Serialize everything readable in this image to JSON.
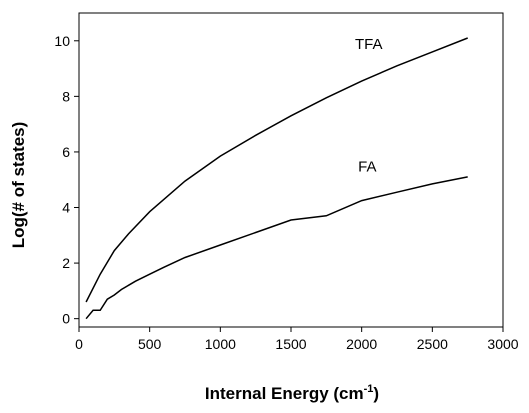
{
  "chart_data": {
    "type": "line",
    "title": "",
    "xlabel": "Internal Energy (cm",
    "xlabel_sup": "-1",
    "xlabel_tail": ")",
    "ylabel": "Log(# of states)",
    "xlim": [
      0,
      3000
    ],
    "ylim": [
      -0.3,
      11
    ],
    "xticks": [
      0,
      500,
      1000,
      1500,
      2000,
      2500,
      3000
    ],
    "yticks": [
      0,
      2,
      4,
      6,
      8,
      10
    ],
    "xtick_labels": [
      "0",
      "500",
      "1000",
      "1500",
      "2000",
      "2500",
      "3000"
    ],
    "ytick_labels": [
      "0",
      "2",
      "4",
      "6",
      "8",
      "10"
    ],
    "grid": false,
    "series": [
      {
        "name": "TFA",
        "label_at": [
          2050,
          9.7
        ],
        "x": [
          50,
          150,
          250,
          350,
          500,
          750,
          1000,
          1250,
          1500,
          1750,
          2000,
          2250,
          2500,
          2750
        ],
        "y": [
          0.6,
          1.6,
          2.45,
          3.05,
          3.85,
          4.95,
          5.85,
          6.6,
          7.3,
          7.95,
          8.55,
          9.1,
          9.6,
          10.1
        ]
      },
      {
        "name": "FA",
        "label_at": [
          2040,
          5.3
        ],
        "x": [
          50,
          100,
          150,
          200,
          250,
          300,
          350,
          400,
          500,
          600,
          750,
          1000,
          1250,
          1500,
          1750,
          2000,
          2250,
          2500,
          2750
        ],
        "y": [
          0.0,
          0.3,
          0.3,
          0.7,
          0.85,
          1.05,
          1.2,
          1.35,
          1.6,
          1.85,
          2.2,
          2.65,
          3.1,
          3.55,
          3.7,
          4.25,
          4.55,
          4.85,
          5.1
        ]
      }
    ]
  }
}
